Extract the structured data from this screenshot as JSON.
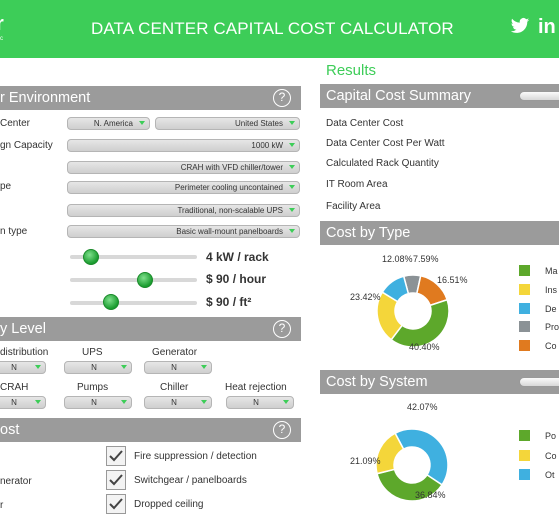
{
  "header": {
    "logo_fragment": "r",
    "logo_sub": "c",
    "title": "DATA CENTER CAPITAL COST CALCULATOR",
    "linkedin_text": "in",
    "green": "#3dcd58"
  },
  "environment": {
    "heading": "r Environment",
    "help_icon": "?",
    "labels": [
      "Center",
      "gn Capacity",
      "",
      "pe",
      "",
      "n type"
    ],
    "region": "N. America",
    "country": "United States",
    "capacity": "1000 kW",
    "cooling_plant": "CRAH with VFD chiller/tower",
    "cooling_type": "Perimeter cooling uncontained",
    "ups_type": "Traditional, non-scalable UPS",
    "power_distribution": "Basic wall-mount panelboards",
    "sliders": [
      {
        "value_text": "4 kW / rack",
        "position": 0.12
      },
      {
        "value_text": "$ 90 / hour",
        "position": 0.6
      },
      {
        "value_text": "$ 90 / ft²",
        "position": 0.3
      }
    ]
  },
  "redundancy": {
    "heading": "y Level",
    "help_icon": "?",
    "row1": [
      {
        "label": "distribution",
        "value": "N"
      },
      {
        "label": "UPS",
        "value": "N"
      },
      {
        "label": "Generator",
        "value": "N"
      }
    ],
    "row2": [
      {
        "label": "CRAH",
        "value": "N"
      },
      {
        "label": "Pumps",
        "value": "N"
      },
      {
        "label": "Chiller",
        "value": "N"
      },
      {
        "label": "Heat rejection",
        "value": "N"
      }
    ]
  },
  "cost": {
    "heading": "ost",
    "help_icon": "?",
    "left_labels": [
      "nerator",
      "r"
    ],
    "checks": [
      {
        "label": "Fire suppression / detection",
        "checked": true
      },
      {
        "label": "Switchgear / panelboards",
        "checked": true
      },
      {
        "label": "Dropped ceiling",
        "checked": true
      }
    ]
  },
  "results": {
    "title": "Results",
    "summary_heading": "Capital Cost Summary",
    "summary_labels": [
      "Data Center Cost",
      "Data Center Cost Per Watt",
      "Calculated Rack Quantity",
      "IT Room Area",
      "Facility Area"
    ],
    "by_type_heading": "Cost by Type",
    "by_type": {
      "legend": [
        "Ma",
        "Ins",
        "De",
        "Pro",
        "Co"
      ],
      "colors": [
        "#5da82b",
        "#f4d63a",
        "#3fb0e0",
        "#8b9296",
        "#e07a1f"
      ],
      "values": [
        40.4,
        23.42,
        12.08,
        7.59,
        16.51
      ],
      "labels": [
        "40.40%",
        "23.42%",
        "12.08%",
        "7.59%",
        "16.51%"
      ]
    },
    "by_system_heading": "Cost by System",
    "by_system": {
      "legend": [
        "Po",
        "Co",
        "Ot"
      ],
      "colors": [
        "#5da82b",
        "#f4d63a",
        "#3fb0e0"
      ],
      "values": [
        36.84,
        21.09,
        42.07
      ],
      "labels": [
        "36.84%",
        "21.09%",
        "42.07%"
      ]
    }
  }
}
